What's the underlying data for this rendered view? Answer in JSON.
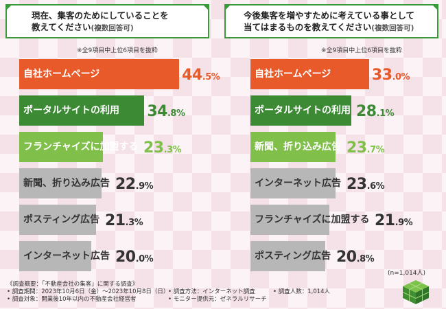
{
  "left_title": {
    "line1": "現在、集客のためにしていることを",
    "line2_main": "教えてください",
    "line2_note": "(複数回答可)"
  },
  "right_title": {
    "line1": "今後集客を増やすために考えている事として",
    "line2_main": "当てはまるものを教えてください",
    "line2_note": "(複数回答可)"
  },
  "left_note": "※全9項目中上位6項目を抜粋",
  "right_note": "※全9項目中上位6項目を抜粋",
  "chart_data": [
    {
      "type": "bar",
      "orientation": "horizontal",
      "categories": [
        "自社ホームページ",
        "ポータルサイトの利用",
        "フランチャイズに加盟する",
        "新聞、折り込み広告",
        "ポスティング広告",
        "インターネット広告"
      ],
      "values": [
        44.5,
        34.8,
        23.3,
        22.9,
        21.3,
        20.0
      ],
      "unit": "%",
      "xlim": [
        0,
        50
      ],
      "colors": [
        "#e85a2a",
        "#3d8a35",
        "#7fbf4a",
        "#b7b7b7",
        "#b7b7b7",
        "#b7b7b7"
      ],
      "value_colors": [
        "#e85a2a",
        "#3d8a35",
        "#7fbf4a",
        "#333333",
        "#333333",
        "#333333"
      ],
      "label_colors": [
        "#ffffff",
        "#ffffff",
        "#ffffff",
        "#333333",
        "#333333",
        "#333333"
      ]
    },
    {
      "type": "bar",
      "orientation": "horizontal",
      "categories": [
        "自社ホームページ",
        "ポータルサイトの利用",
        "新聞、折り込み広告",
        "インターネット広告",
        "フランチャイズに加盟する",
        "ポスティング広告"
      ],
      "values": [
        33.0,
        28.1,
        23.7,
        23.6,
        21.9,
        20.8
      ],
      "unit": "%",
      "xlim": [
        0,
        50
      ],
      "colors": [
        "#e85a2a",
        "#3d8a35",
        "#7fbf4a",
        "#b7b7b7",
        "#b7b7b7",
        "#b7b7b7"
      ],
      "value_colors": [
        "#e85a2a",
        "#3d8a35",
        "#7fbf4a",
        "#333333",
        "#333333",
        "#333333"
      ],
      "label_colors": [
        "#ffffff",
        "#ffffff",
        "#ffffff",
        "#333333",
        "#333333",
        "#333333"
      ]
    }
  ],
  "sample_size": "(n=1,014人)",
  "footer": {
    "heading": "《調査概要：「不動産会社の集客」に関する調査》",
    "period": "• 調査期間：2023年10月6日（金）〜2023年10月8日（日）",
    "target": "• 調査対象：開業後10年以内の不動産会社経営者",
    "method": "• 調査方法：インターネット調査",
    "provider": "• モニター提供元：ゼネラルリサーチ",
    "count": "• 調査人数：1,014人"
  },
  "logo_icon": "green-cube-logo-icon"
}
